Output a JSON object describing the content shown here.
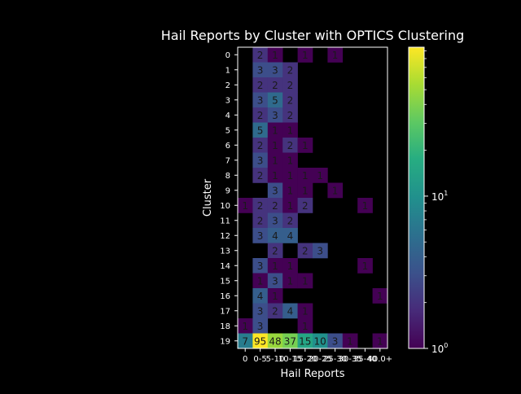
{
  "chart_data": {
    "type": "heatmap",
    "title": "Hail Reports by Cluster with OPTICS Clustering",
    "xlabel": "Hail Reports",
    "ylabel": "Cluster",
    "x_categories": [
      "0",
      "0-5",
      "5-10",
      "10-15",
      "15-20",
      "20-25",
      "25-30",
      "30-35",
      "35-40",
      "40.0+"
    ],
    "x_tick_labels": [
      "0",
      "0-5",
      "5-10",
      "10-15",
      "15-20",
      "20-25",
      "25-30",
      "30-35",
      "35-40",
      "40.0+"
    ],
    "y_categories": [
      "0",
      "1",
      "2",
      "3",
      "4",
      "5",
      "6",
      "7",
      "8",
      "9",
      "10",
      "11",
      "12",
      "13",
      "14",
      "15",
      "16",
      "17",
      "18",
      "19"
    ],
    "values": [
      [
        null,
        2,
        1,
        null,
        1,
        null,
        1,
        null,
        null,
        null
      ],
      [
        null,
        3,
        3,
        2,
        null,
        null,
        null,
        null,
        null,
        null
      ],
      [
        null,
        2,
        2,
        2,
        null,
        null,
        null,
        null,
        null,
        null
      ],
      [
        null,
        3,
        5,
        2,
        null,
        null,
        null,
        null,
        null,
        null
      ],
      [
        null,
        2,
        3,
        2,
        null,
        null,
        null,
        null,
        null,
        null
      ],
      [
        null,
        5,
        1,
        1,
        null,
        null,
        null,
        null,
        null,
        null
      ],
      [
        null,
        2,
        1,
        2,
        1,
        null,
        null,
        null,
        null,
        null
      ],
      [
        null,
        3,
        1,
        1,
        null,
        null,
        null,
        null,
        null,
        null
      ],
      [
        null,
        2,
        1,
        1,
        1,
        1,
        null,
        null,
        null,
        null
      ],
      [
        null,
        null,
        3,
        1,
        1,
        null,
        1,
        null,
        null,
        null
      ],
      [
        1,
        2,
        2,
        1,
        2,
        null,
        null,
        null,
        1,
        null
      ],
      [
        null,
        2,
        3,
        2,
        null,
        null,
        null,
        null,
        null,
        null
      ],
      [
        null,
        3,
        4,
        4,
        null,
        null,
        null,
        null,
        null,
        null
      ],
      [
        null,
        null,
        2,
        null,
        2,
        3,
        null,
        null,
        null,
        null
      ],
      [
        null,
        3,
        1,
        1,
        null,
        null,
        null,
        null,
        1,
        null
      ],
      [
        null,
        1,
        3,
        1,
        1,
        null,
        null,
        null,
        null,
        null
      ],
      [
        null,
        4,
        1,
        null,
        null,
        null,
        null,
        null,
        null,
        1
      ],
      [
        null,
        3,
        2,
        4,
        1,
        null,
        null,
        null,
        null,
        null
      ],
      [
        1,
        3,
        null,
        null,
        1,
        null,
        null,
        null,
        null,
        null
      ],
      [
        7,
        95,
        48,
        37,
        15,
        10,
        3,
        1,
        null,
        1
      ]
    ],
    "colormap": "viridis",
    "color_scale": "log",
    "colorbar_range": [
      1,
      95
    ],
    "colorbar_tick_labels": [
      "10^0",
      "10^1"
    ],
    "colors": {
      "background": "#000000",
      "text": "#ffffff",
      "cell_text": "#1a1a1a"
    },
    "grid": false
  }
}
